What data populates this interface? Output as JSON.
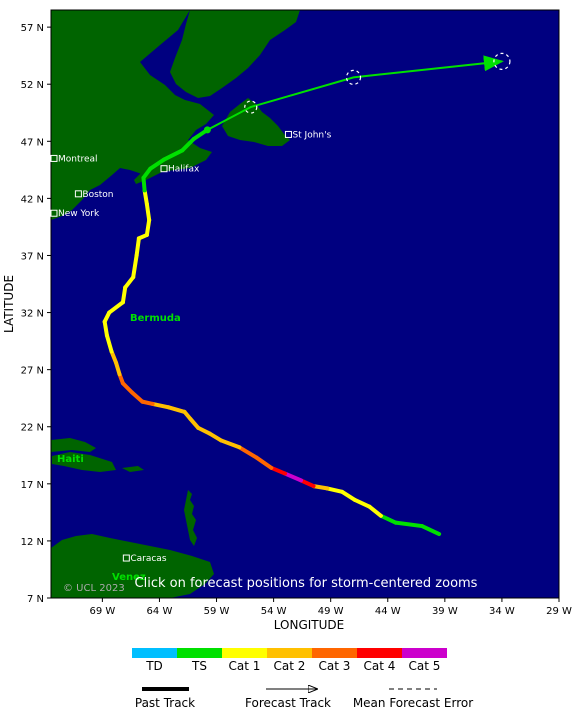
{
  "axes": {
    "x_title": "LONGITUDE",
    "y_title": "LATITUDE",
    "x_ticks": [
      {
        "lon": -69,
        "label": "69 W"
      },
      {
        "lon": -64,
        "label": "64 W"
      },
      {
        "lon": -59,
        "label": "59 W"
      },
      {
        "lon": -54,
        "label": "54 W"
      },
      {
        "lon": -49,
        "label": "49 W"
      },
      {
        "lon": -44,
        "label": "44 W"
      },
      {
        "lon": -39,
        "label": "39 W"
      },
      {
        "lon": -34,
        "label": "34 W"
      },
      {
        "lon": -29,
        "label": "29 W"
      }
    ],
    "y_ticks": [
      {
        "lat": 57,
        "label": "57 N"
      },
      {
        "lat": 52,
        "label": "52 N"
      },
      {
        "lat": 47,
        "label": "47 N"
      },
      {
        "lat": 42,
        "label": "42 N"
      },
      {
        "lat": 37,
        "label": "37 N"
      },
      {
        "lat": 32,
        "label": "32 N"
      },
      {
        "lat": 27,
        "label": "27 N"
      },
      {
        "lat": 22,
        "label": "22 N"
      },
      {
        "lat": 17,
        "label": "17 N"
      },
      {
        "lat": 12,
        "label": "12 N"
      },
      {
        "lat": 7,
        "label": "7 N"
      }
    ],
    "xlim": [
      -73.5,
      -29
    ],
    "ylim": [
      7,
      58.5
    ]
  },
  "colors": {
    "ocean": "#000080",
    "land": "#006400",
    "td": "#00BFFF",
    "ts": "#00E000",
    "cat1": "#FFFF00",
    "cat2": "#FFC000",
    "cat3": "#FF6600",
    "cat4": "#FF0000",
    "cat5": "#CC00CC"
  },
  "cities": [
    {
      "name": "Montreal",
      "lon": -73.6,
      "lat": 45.5
    },
    {
      "name": "Boston",
      "lon": -71.1,
      "lat": 42.4
    },
    {
      "name": "New York",
      "lon": -74.0,
      "lat": 40.7
    },
    {
      "name": "Halifax",
      "lon": -63.6,
      "lat": 44.6
    },
    {
      "name": "St John's",
      "lon": -52.7,
      "lat": 47.6
    },
    {
      "name": "Caracas",
      "lon": -66.9,
      "lat": 10.5
    }
  ],
  "place_labels": {
    "bermuda": "Bermuda",
    "haiti": "Haiti",
    "venezuela": "Venez",
    "copyright": "© UCL 2023"
  },
  "click_hint": "Click on forecast positions for storm-centered zooms",
  "past_track": [
    {
      "lon": -39.5,
      "lat": 12.6,
      "cat": "td"
    },
    {
      "lon": -41.0,
      "lat": 13.3,
      "cat": "ts"
    },
    {
      "lon": -43.3,
      "lat": 13.6,
      "cat": "ts"
    },
    {
      "lon": -44.6,
      "lat": 14.2,
      "cat": "ts"
    },
    {
      "lon": -45.6,
      "lat": 15.0,
      "cat": "cat1"
    },
    {
      "lon": -46.9,
      "lat": 15.6,
      "cat": "cat1"
    },
    {
      "lon": -48.0,
      "lat": 16.3,
      "cat": "cat1"
    },
    {
      "lon": -49.3,
      "lat": 16.6,
      "cat": "cat1"
    },
    {
      "lon": -50.5,
      "lat": 16.8,
      "cat": "cat2"
    },
    {
      "lon": -51.6,
      "lat": 17.3,
      "cat": "cat4"
    },
    {
      "lon": -53.0,
      "lat": 17.9,
      "cat": "cat5"
    },
    {
      "lon": -54.2,
      "lat": 18.4,
      "cat": "cat4"
    },
    {
      "lon": -55.5,
      "lat": 19.3,
      "cat": "cat3"
    },
    {
      "lon": -57.0,
      "lat": 20.2,
      "cat": "cat3"
    },
    {
      "lon": -58.6,
      "lat": 20.8,
      "cat": "cat2"
    },
    {
      "lon": -59.6,
      "lat": 21.4,
      "cat": "cat2"
    },
    {
      "lon": -60.6,
      "lat": 21.9,
      "cat": "cat2"
    },
    {
      "lon": -61.3,
      "lat": 22.7,
      "cat": "cat2"
    },
    {
      "lon": -61.8,
      "lat": 23.3,
      "cat": "cat2"
    },
    {
      "lon": -63.2,
      "lat": 23.7,
      "cat": "cat2"
    },
    {
      "lon": -64.6,
      "lat": 24.0,
      "cat": "cat2"
    },
    {
      "lon": -65.5,
      "lat": 24.2,
      "cat": "cat3"
    },
    {
      "lon": -66.4,
      "lat": 25.0,
      "cat": "cat3"
    },
    {
      "lon": -67.2,
      "lat": 25.8,
      "cat": "cat3"
    },
    {
      "lon": -67.5,
      "lat": 26.6,
      "cat": "cat3"
    },
    {
      "lon": -67.8,
      "lat": 27.6,
      "cat": "cat2"
    },
    {
      "lon": -68.2,
      "lat": 28.6,
      "cat": "cat2"
    },
    {
      "lon": -68.6,
      "lat": 30.0,
      "cat": "cat1"
    },
    {
      "lon": -68.8,
      "lat": 31.2,
      "cat": "cat1"
    },
    {
      "lon": -68.4,
      "lat": 32.0,
      "cat": "cat1"
    },
    {
      "lon": -67.2,
      "lat": 32.9,
      "cat": "cat1"
    },
    {
      "lon": -67.0,
      "lat": 34.2,
      "cat": "cat1"
    },
    {
      "lon": -66.3,
      "lat": 35.1,
      "cat": "cat1"
    },
    {
      "lon": -66.0,
      "lat": 37.0,
      "cat": "cat1"
    },
    {
      "lon": -65.8,
      "lat": 38.5,
      "cat": "cat1"
    },
    {
      "lon": -65.1,
      "lat": 38.8,
      "cat": "cat1"
    },
    {
      "lon": -64.9,
      "lat": 40.1,
      "cat": "cat1"
    },
    {
      "lon": -65.1,
      "lat": 41.5,
      "cat": "cat1"
    },
    {
      "lon": -65.3,
      "lat": 42.7,
      "cat": "cat1"
    },
    {
      "lon": -65.4,
      "lat": 43.8,
      "cat": "ts"
    },
    {
      "lon": -64.8,
      "lat": 44.6,
      "cat": "ts"
    },
    {
      "lon": -63.6,
      "lat": 45.4,
      "cat": "ts"
    },
    {
      "lon": -62.0,
      "lat": 46.2,
      "cat": "ts"
    },
    {
      "lon": -61.0,
      "lat": 47.2,
      "cat": "ts"
    },
    {
      "lon": -59.8,
      "lat": 48.0,
      "cat": "ts"
    }
  ],
  "forecast_track": [
    {
      "lon": -59.8,
      "lat": 48.0
    },
    {
      "lon": -56.0,
      "lat": 50.0
    },
    {
      "lon": -47.0,
      "lat": 52.6
    },
    {
      "lon": -34.0,
      "lat": 54.0
    }
  ],
  "forecast_circles": [
    {
      "lon": -56.0,
      "lat": 50.0,
      "r": 6
    },
    {
      "lon": -47.0,
      "lat": 52.6,
      "r": 7
    },
    {
      "lon": -34.0,
      "lat": 54.0,
      "r": 8
    }
  ],
  "legend": {
    "categories": [
      {
        "key": "td",
        "label": "TD"
      },
      {
        "key": "ts",
        "label": "TS"
      },
      {
        "key": "cat1",
        "label": "Cat 1"
      },
      {
        "key": "cat2",
        "label": "Cat 2"
      },
      {
        "key": "cat3",
        "label": "Cat 3"
      },
      {
        "key": "cat4",
        "label": "Cat 4"
      },
      {
        "key": "cat5",
        "label": "Cat 5"
      }
    ],
    "past_track_label": "Past Track",
    "forecast_track_label": "Forecast Track",
    "error_label": "Mean Forecast Error"
  }
}
